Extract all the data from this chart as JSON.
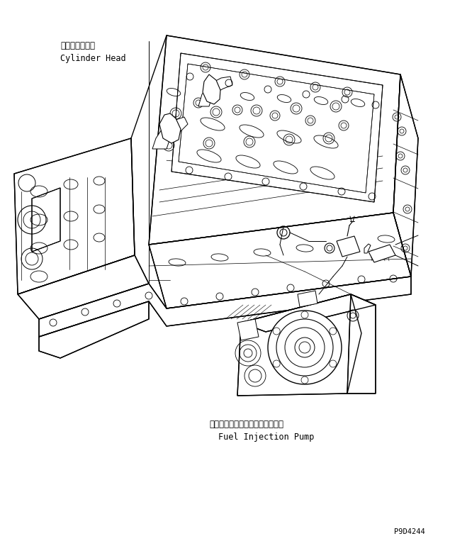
{
  "background_color": "#ffffff",
  "line_color": "#000000",
  "label_cylinder_head_jp": "シリンダヘッド",
  "label_cylinder_head_en": "Cylinder Head",
  "label_pump_jp": "フェエルインジェクションポンプ",
  "label_pump_en": "Fuel Injection Pump",
  "part_number": "P9D4244",
  "figsize": [
    6.35,
    7.63
  ],
  "dpi": 100
}
